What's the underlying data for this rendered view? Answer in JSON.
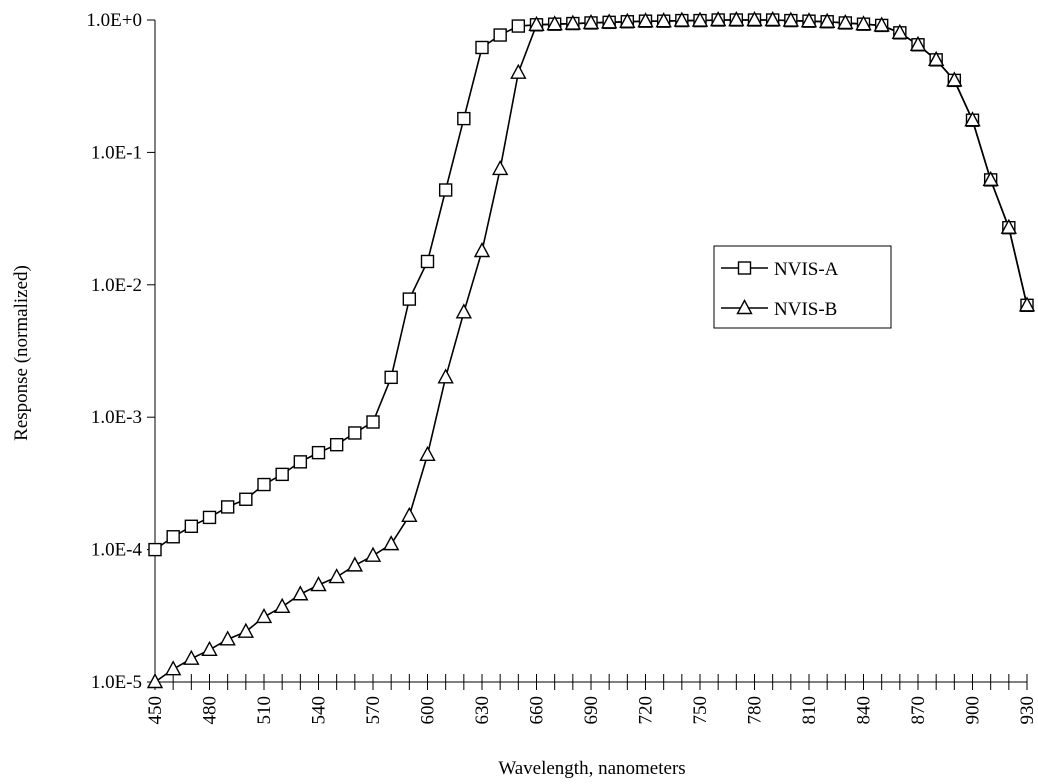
{
  "chart_data": {
    "type": "line",
    "title": "",
    "xlabel": "Wavelength, nanometers",
    "ylabel": "Response (normalized)",
    "x_scale": "linear",
    "y_scale": "log",
    "xlim": [
      450,
      930
    ],
    "ylim": [
      1e-05,
      1
    ],
    "x_tick_labels": [
      "450",
      "480",
      "510",
      "540",
      "570",
      "600",
      "630",
      "660",
      "690",
      "720",
      "750",
      "780",
      "810",
      "840",
      "870",
      "900",
      "930"
    ],
    "y_tick_labels": [
      "1.0E-5",
      "1.0E-4",
      "1.0E-3",
      "1.0E-2",
      "1.0E-1",
      "1.0E+0"
    ],
    "y_tick_values": [
      1e-05,
      0.0001,
      0.001,
      0.01,
      0.1,
      1
    ],
    "legend": {
      "placement": "right-middle"
    },
    "x": [
      450,
      460,
      470,
      480,
      490,
      500,
      510,
      520,
      530,
      540,
      550,
      560,
      570,
      580,
      590,
      600,
      610,
      620,
      630,
      640,
      650,
      660,
      670,
      680,
      690,
      700,
      710,
      720,
      730,
      740,
      750,
      760,
      770,
      780,
      790,
      800,
      810,
      820,
      830,
      840,
      850,
      860,
      870,
      880,
      890,
      900,
      910,
      920,
      930
    ],
    "series": [
      {
        "name": "NVIS-A",
        "marker": "square",
        "values": [
          0.0001,
          0.000125,
          0.00015,
          0.000175,
          0.00021,
          0.00024,
          0.00031,
          0.00037,
          0.00046,
          0.00054,
          0.00062,
          0.00076,
          0.00092,
          0.002,
          0.0078,
          0.015,
          0.052,
          0.18,
          0.62,
          0.77,
          0.9,
          0.92,
          0.93,
          0.94,
          0.95,
          0.96,
          0.97,
          0.98,
          0.98,
          0.99,
          0.99,
          1.0,
          1.0,
          1.0,
          1.0,
          0.99,
          0.98,
          0.97,
          0.95,
          0.93,
          0.91,
          0.8,
          0.65,
          0.5,
          0.35,
          0.175,
          0.062,
          0.027,
          0.007
        ]
      },
      {
        "name": "NVIS-B",
        "marker": "triangle",
        "values": [
          1e-05,
          1.25e-05,
          1.5e-05,
          1.75e-05,
          2.1e-05,
          2.4e-05,
          3.1e-05,
          3.7e-05,
          4.6e-05,
          5.4e-05,
          6.2e-05,
          7.6e-05,
          9e-05,
          0.00011,
          0.00018,
          0.00052,
          0.002,
          0.0062,
          0.018,
          0.075,
          0.4,
          0.92,
          0.93,
          0.94,
          0.95,
          0.96,
          0.97,
          0.98,
          0.98,
          0.99,
          0.99,
          1.0,
          1.0,
          1.0,
          1.0,
          0.99,
          0.98,
          0.97,
          0.95,
          0.93,
          0.91,
          0.8,
          0.65,
          0.5,
          0.35,
          0.175,
          0.062,
          0.027,
          0.007
        ]
      }
    ]
  }
}
